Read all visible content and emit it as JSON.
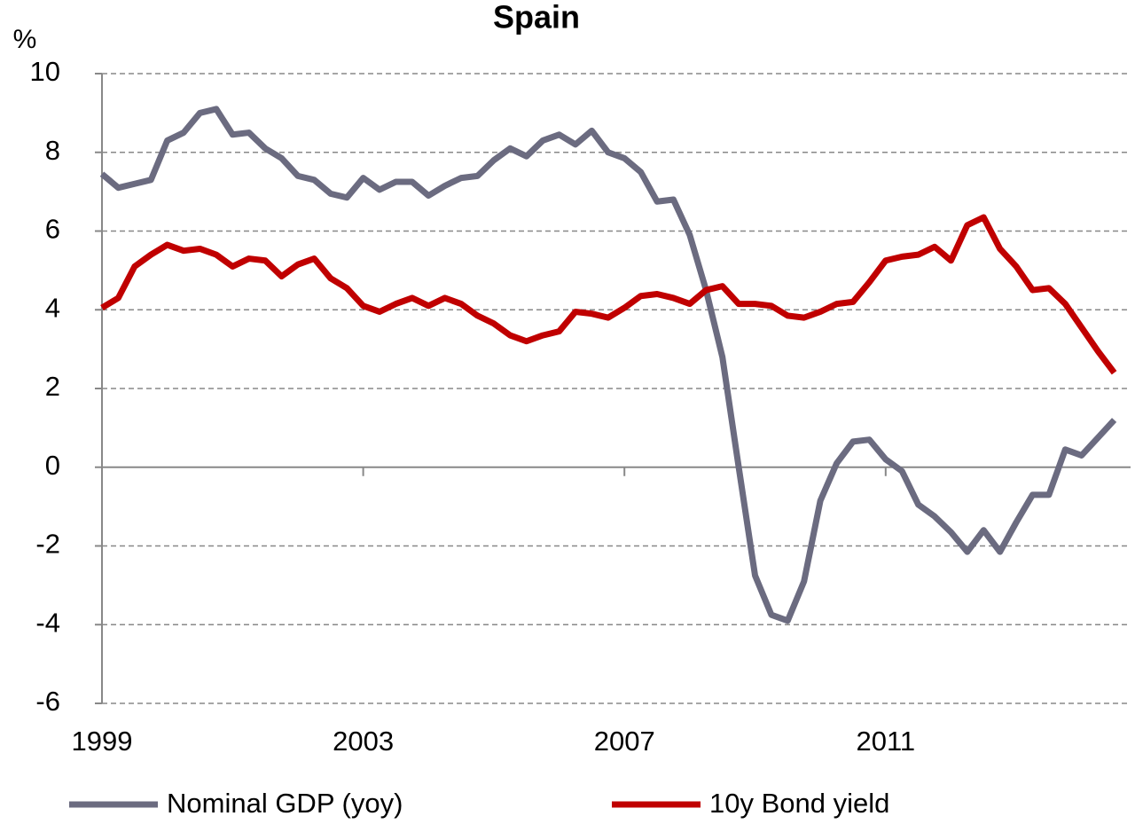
{
  "chart_data": {
    "type": "line",
    "title": "Spain",
    "ylabel": "%",
    "x": [
      1999,
      1999.25,
      1999.5,
      1999.75,
      2000,
      2000.25,
      2000.5,
      2000.75,
      2001,
      2001.25,
      2001.5,
      2001.75,
      2002,
      2002.25,
      2002.5,
      2002.75,
      2003,
      2003.25,
      2003.5,
      2003.75,
      2004,
      2004.25,
      2004.5,
      2004.75,
      2005,
      2005.25,
      2005.5,
      2005.75,
      2006,
      2006.25,
      2006.5,
      2006.75,
      2007,
      2007.25,
      2007.5,
      2007.75,
      2008,
      2008.25,
      2008.5,
      2008.75,
      2009,
      2009.25,
      2009.5,
      2009.75,
      2010,
      2010.25,
      2010.5,
      2010.75,
      2011,
      2011.25,
      2011.5,
      2011.75,
      2012,
      2012.25,
      2012.5,
      2012.75,
      2013,
      2013.25,
      2013.5,
      2013.75,
      2014,
      2014.25,
      2014.5
    ],
    "series": [
      {
        "name": "Nominal GDP (yoy)",
        "color": "#6b6b80",
        "values": [
          7.45,
          7.1,
          7.2,
          7.3,
          8.3,
          8.5,
          9.0,
          9.1,
          8.45,
          8.5,
          8.1,
          7.85,
          7.4,
          7.3,
          6.95,
          6.85,
          7.35,
          7.05,
          7.25,
          7.25,
          6.9,
          7.15,
          7.35,
          7.4,
          7.8,
          8.1,
          7.9,
          8.3,
          8.45,
          8.2,
          8.55,
          8.0,
          7.85,
          7.5,
          6.75,
          6.8,
          5.9,
          4.5,
          2.8,
          0.0,
          -2.75,
          -3.75,
          -3.9,
          -2.9,
          -0.85,
          0.1,
          0.65,
          0.7,
          0.2,
          -0.1,
          -0.95,
          -1.25,
          -1.65,
          -2.15,
          -1.6,
          -2.15,
          -1.4,
          -0.7,
          -0.7,
          0.45,
          0.3,
          0.75,
          1.2
        ]
      },
      {
        "name": "10y Bond yield",
        "color": "#c00000",
        "values": [
          4.05,
          4.3,
          5.1,
          5.4,
          5.65,
          5.5,
          5.55,
          5.4,
          5.1,
          5.3,
          5.25,
          4.85,
          5.15,
          5.3,
          4.8,
          4.55,
          4.1,
          3.95,
          4.15,
          4.3,
          4.1,
          4.3,
          4.15,
          3.85,
          3.65,
          3.35,
          3.2,
          3.35,
          3.45,
          3.95,
          3.9,
          3.8,
          4.05,
          4.35,
          4.4,
          4.3,
          4.15,
          4.5,
          4.6,
          4.15,
          4.15,
          4.1,
          3.85,
          3.8,
          3.95,
          4.15,
          4.2,
          4.7,
          5.25,
          5.35,
          5.4,
          5.6,
          5.25,
          6.15,
          6.35,
          5.55,
          5.1,
          4.5,
          4.55,
          4.15,
          3.55,
          2.95,
          2.4
        ]
      }
    ],
    "xlim": [
      1999,
      2014.75
    ],
    "xticks": [
      1999,
      2003,
      2007,
      2011
    ],
    "ylim": [
      -6,
      10
    ],
    "yticks": [
      -6,
      -4,
      -2,
      0,
      2,
      4,
      6,
      8,
      10
    ],
    "grid": true
  }
}
